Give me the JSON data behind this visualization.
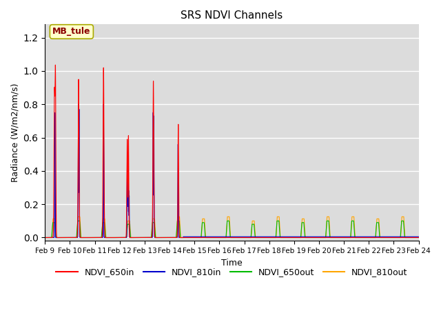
{
  "title": "SRS NDVI Channels",
  "xlabel": "Time",
  "ylabel": "Radiance (W/m2/nm/s)",
  "ylim": [
    -0.02,
    1.28
  ],
  "xlim": [
    0,
    15
  ],
  "annotation": "MB_tule",
  "annotation_color": "#8B0000",
  "annotation_bg": "#FFFFCC",
  "bg_color": "#DCDCDC",
  "colors": {
    "NDVI_650in": "#FF0000",
    "NDVI_810in": "#0000CC",
    "NDVI_650out": "#00BB00",
    "NDVI_810out": "#FFA500"
  },
  "tick_labels": [
    "Feb 9",
    "Feb 10",
    "Feb 11",
    "Feb 12",
    "Feb 13",
    "Feb 14",
    "Feb 15",
    "Feb 16",
    "Feb 17",
    "Feb 18",
    "Feb 19",
    "Feb 20",
    "Feb 21",
    "Feb 22",
    "Feb 23",
    "Feb 24"
  ],
  "yticks": [
    0.0,
    0.2,
    0.4,
    0.6,
    0.8,
    1.0,
    1.2
  ],
  "figsize": [
    6.4,
    4.8
  ],
  "dpi": 100
}
